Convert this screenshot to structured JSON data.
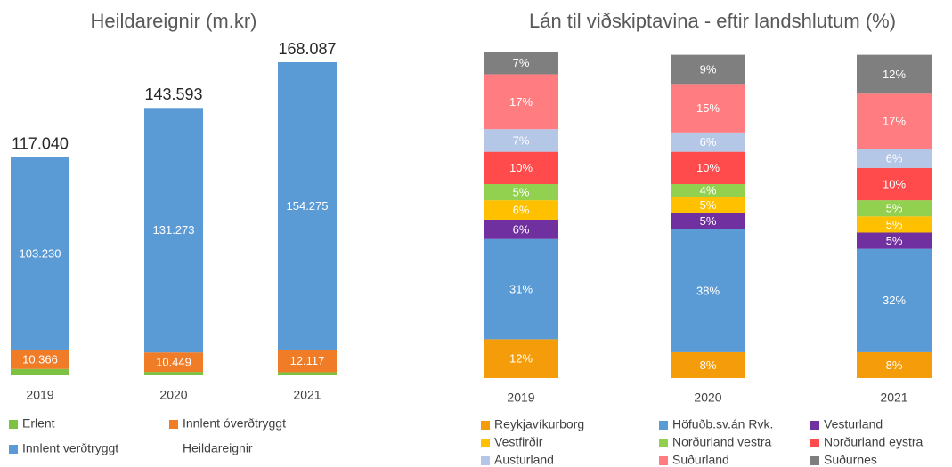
{
  "chart_data": [
    {
      "type": "stacked_bar",
      "title": "Heildareignir (m.kr)",
      "categories": [
        "2019",
        "2020",
        "2021"
      ],
      "series": [
        {
          "name": "Erlent",
          "color": "#7cc142",
          "values": [
            3444,
            1871,
            1695
          ]
        },
        {
          "name": "Innlent óverðtryggt",
          "color": "#f07c28",
          "values": [
            10366,
            10449,
            12117
          ],
          "value_labels": [
            "10.366",
            "10.449",
            "12.117"
          ]
        },
        {
          "name": "Innlent verðtryggt",
          "color": "#5b9bd5",
          "values": [
            103230,
            131273,
            154275
          ],
          "value_labels": [
            "103.230",
            "131.273",
            "154.275"
          ]
        },
        {
          "name": "Heildareignir",
          "values": [
            117040,
            143593,
            168087
          ],
          "value_labels": [
            "117.040",
            "143.593",
            "168.087"
          ]
        }
      ]
    },
    {
      "type": "stacked_bar",
      "title": "Lán til viðskiptavina - eftir landshlutum (%)",
      "categories": [
        "2019",
        "2020",
        "2021"
      ],
      "series": [
        {
          "name": "Reykjavíkurborg",
          "color": "#f59c0a",
          "values": [
            12,
            8,
            8
          ],
          "value_labels": [
            "12%",
            "8%",
            "8%"
          ]
        },
        {
          "name": "Höfuðb.sv.án Rvk.",
          "color": "#5b9bd5",
          "values": [
            31,
            38,
            32
          ],
          "value_labels": [
            "31%",
            "38%",
            "32%"
          ]
        },
        {
          "name": "Vesturland",
          "color": "#7030a0",
          "values": [
            6,
            5,
            5
          ],
          "value_labels": [
            "6%",
            "5%",
            "5%"
          ]
        },
        {
          "name": "Vestfirðir",
          "color": "#ffc000",
          "values": [
            6,
            5,
            5
          ],
          "value_labels": [
            "6%",
            "5%",
            "5%"
          ]
        },
        {
          "name": "Norðurland vestra",
          "color": "#92d050",
          "values": [
            5,
            4,
            5
          ],
          "value_labels": [
            "5%",
            "4%",
            "5%"
          ]
        },
        {
          "name": "Norðurland eystra",
          "color": "#ff4b4b",
          "values": [
            10,
            10,
            10
          ],
          "value_labels": [
            "10%",
            "10%",
            "10%"
          ]
        },
        {
          "name": "Austurland",
          "color": "#b4c7e7",
          "values": [
            7,
            6,
            6
          ],
          "value_labels": [
            "7%",
            "6%",
            "6%"
          ]
        },
        {
          "name": "Suðurland",
          "color": "#ff7c80",
          "values": [
            17,
            15,
            17
          ],
          "value_labels": [
            "17%",
            "15%",
            "17%"
          ]
        },
        {
          "name": "Suðurnes",
          "color": "#7f7f7f",
          "values": [
            7,
            9,
            12
          ],
          "value_labels": [
            "7%",
            "9%",
            "12%"
          ]
        }
      ]
    }
  ]
}
